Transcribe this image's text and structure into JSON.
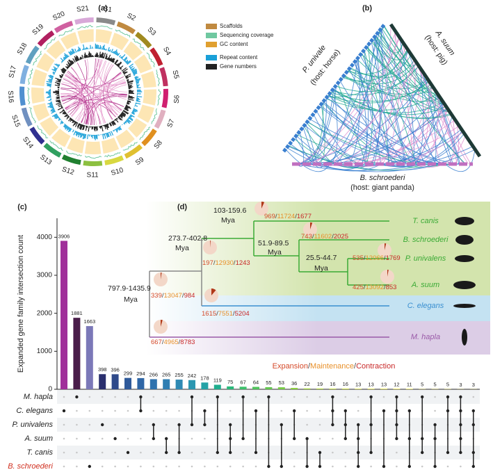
{
  "panel_a": {
    "label": "(a)",
    "segments": [
      "S1",
      "S2",
      "S3",
      "S4",
      "S5",
      "S6",
      "S7",
      "S8",
      "S9",
      "S10",
      "S11",
      "S12",
      "S13",
      "S14",
      "S15",
      "S16",
      "S17",
      "S18",
      "S19",
      "S20",
      "S21"
    ],
    "segment_colors": [
      "#8a8a8a",
      "#c08a40",
      "#a08a20",
      "#c02030",
      "#c03060",
      "#d02070",
      "#e0b0c0",
      "#e09020",
      "#e0c030",
      "#d8d840",
      "#8cc040",
      "#208030",
      "#30a060",
      "#303090",
      "#7090c0",
      "#5090d0",
      "#80b0e0",
      "#60a0c0",
      "#b02060",
      "#d060a0",
      "#d8a8d8"
    ],
    "legend": [
      "Scaffolds",
      "Sequencing coverage",
      "GC content",
      "Repeat content",
      "Gene numbers"
    ]
  },
  "panel_b": {
    "label": "(b)",
    "left": "P. univale",
    "left_host": "(host: horse)",
    "right": "A. suum",
    "right_host": "(host: pig)",
    "bottom": "B. schroederi",
    "bottom_host": "(host: giant panda)"
  },
  "chart_data": {
    "type": "bar",
    "label": "(c)",
    "y_label": "Expanded gene family intersection count",
    "values": [
      3906,
      1881,
      1663,
      398,
      396,
      299,
      294,
      266,
      265,
      255,
      242,
      178,
      119,
      75,
      67,
      64,
      55,
      53,
      36,
      22,
      19,
      16,
      16,
      13,
      13,
      13,
      12,
      11,
      5,
      5,
      5,
      3,
      3
    ],
    "colors": [
      "#a0309a",
      "#4a1d4a",
      "#7b78b8",
      "#2a2f6e",
      "#2f4a8a",
      "#2f5a9a",
      "#2f66a6",
      "#2f72ae",
      "#2f7eb2",
      "#2f8ab4",
      "#2c96b0",
      "#24a2a6",
      "#1fae8e",
      "#2ab87a",
      "#3cc06a",
      "#50c45c",
      "#64c850",
      "#78cc46",
      "#8cd03e",
      "#a0d436",
      "#b0d830",
      "#c0dc2c",
      "#ccde2a",
      "#d8e028",
      "#e0e226",
      "#e8e424",
      "#eee624",
      "#f2e822",
      "#f4ea22",
      "#f6ea20",
      "#f8ec20",
      "#faee20",
      "#fcf020"
    ],
    "ylim": [
      0,
      4500
    ],
    "yticks": [
      0,
      1000,
      2000,
      3000,
      4000
    ],
    "sets": [
      "M. hapla",
      "C. elegans",
      "P. univalens",
      "A. suum",
      "T. canis",
      "B. schroederi"
    ],
    "set_colors": [
      "#222222",
      "#222222",
      "#222222",
      "#222222",
      "#222222",
      "#d03020"
    ],
    "intersections": [
      [
        1
      ],
      [
        0
      ],
      [
        5
      ],
      [
        2
      ],
      [
        3
      ],
      [
        4
      ],
      [
        0,
        1
      ],
      [
        2,
        3
      ],
      [
        3,
        4
      ],
      [
        2,
        4
      ],
      [
        0,
        2
      ],
      [
        1,
        2
      ],
      [
        0,
        4
      ],
      [
        2,
        3,
        4
      ],
      [
        0,
        3
      ],
      [
        1,
        4
      ],
      [
        0,
        5
      ],
      [
        2,
        5
      ],
      [
        1,
        3
      ],
      [
        3,
        5
      ],
      [
        4,
        5
      ],
      [
        0,
        1,
        2
      ],
      [
        1,
        2,
        3
      ],
      [
        2,
        3,
        4,
        5
      ],
      [
        0,
        2,
        4
      ],
      [
        1,
        5
      ],
      [
        0,
        1,
        2,
        3
      ],
      [
        1,
        3,
        5
      ],
      [
        0,
        3,
        4
      ],
      [
        2,
        3,
        5
      ],
      [
        0,
        1,
        4
      ],
      [
        0,
        1,
        2,
        3,
        4
      ],
      [
        1,
        2,
        4,
        5
      ]
    ]
  },
  "panel_d": {
    "label": "(d)",
    "separator": "/",
    "legend": {
      "expansion": "Expansion",
      "maintenance": "Maintenance",
      "contraction": "Contraction"
    },
    "nodes": [
      {
        "time": "797.9-1435.9",
        "unit": "Mya"
      },
      {
        "time": "273.7-402.8",
        "unit": "Mya"
      },
      {
        "time": "103-159.6",
        "unit": "Mya"
      },
      {
        "time": "51.9-89.5",
        "unit": "Mya"
      },
      {
        "time": "25.5-44.7",
        "unit": "Mya"
      }
    ],
    "taxa": [
      "T. canis",
      "B. schroederi",
      "P. univalens",
      "A. suum",
      "C. elegans",
      "M. hapla"
    ],
    "counts": [
      {
        "expansion": 969,
        "maintenance": 11724,
        "contraction": 1677
      },
      {
        "expansion": 743,
        "maintenance": 11602,
        "contraction": 2025
      },
      {
        "expansion": 535,
        "maintenance": 12066,
        "contraction": 1769
      },
      {
        "expansion": 425,
        "maintenance": 13092,
        "contraction": 853
      },
      {
        "expansion": 197,
        "maintenance": 12930,
        "contraction": 1243
      },
      {
        "expansion": 339,
        "maintenance": 13047,
        "contraction": 984
      },
      {
        "expansion": 1615,
        "maintenance": 7551,
        "contraction": 5204
      },
      {
        "expansion": 667,
        "maintenance": 4965,
        "contraction": 8783
      }
    ]
  }
}
